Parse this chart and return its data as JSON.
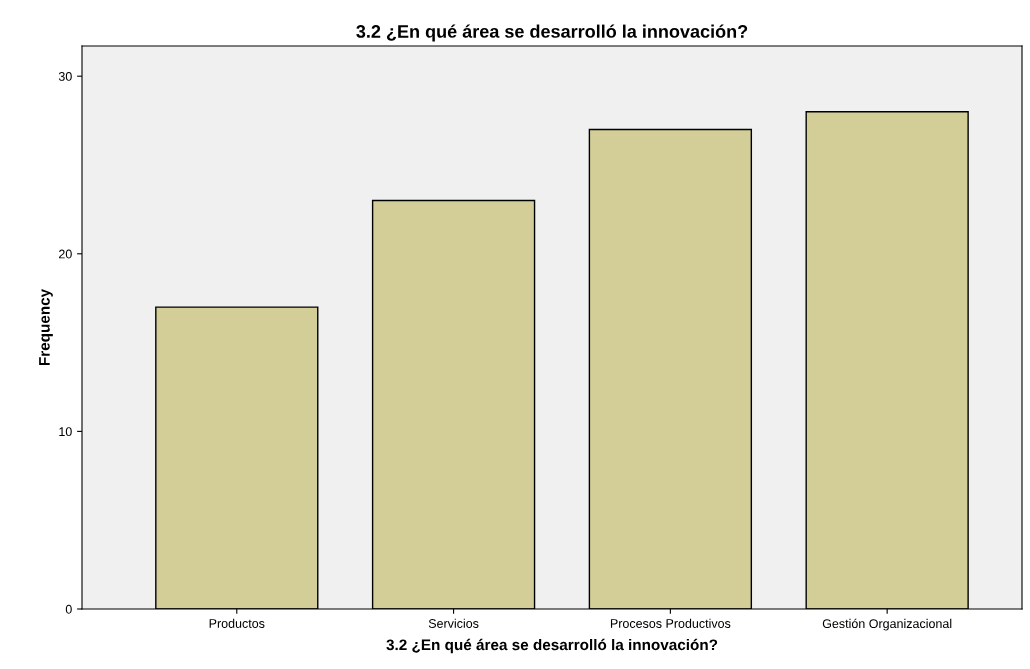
{
  "chart_data": {
    "type": "bar",
    "title": "3.2 ¿En qué área se desarrolló la innovación?",
    "xlabel": "3.2 ¿En qué área se desarrolló la innovación?",
    "ylabel": "Frequency",
    "categories": [
      "Productos",
      "Servicios",
      "Procesos Productivos",
      "Gestión Organizacional"
    ],
    "values": [
      17,
      23,
      27,
      28
    ],
    "color": "#d3ce97",
    "ylim": [
      0,
      31.7
    ],
    "yticks": [
      0,
      10,
      20,
      30
    ],
    "grid": false,
    "legend": false
  }
}
